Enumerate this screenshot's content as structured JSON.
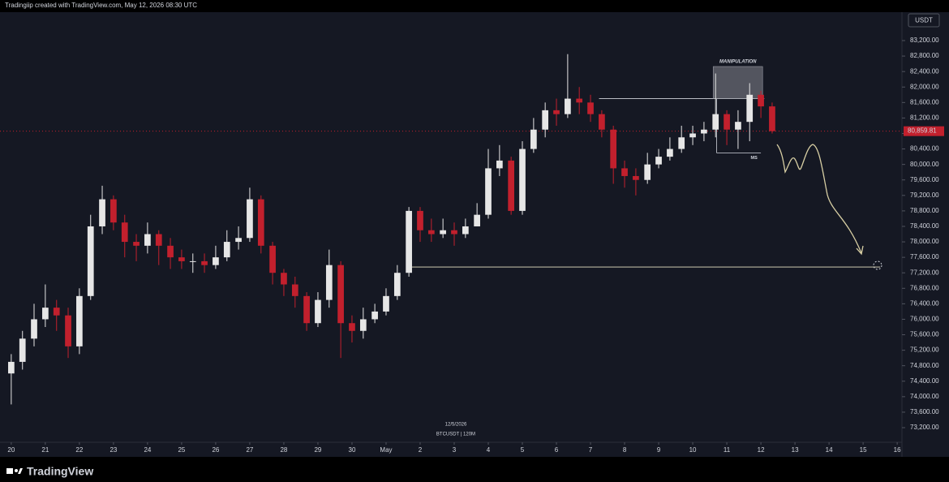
{
  "header": "Tradingiip created with TradingView.com, May 12, 2026 08:30 UTC",
  "currency": "USDT",
  "footer_logo": "TradingView",
  "chart_data": {
    "type": "candlestick",
    "watermark_date": "12/5/2026",
    "symbol": "BTCUSDT | 120M",
    "up_color": "#e6e6e6",
    "down_color": "#c2202d",
    "x": [
      0,
      0.33,
      0.67,
      1,
      1.33,
      1.67,
      2,
      2.33,
      2.67,
      3,
      3.33,
      3.67,
      4,
      4.33,
      4.67,
      5,
      5.33,
      5.67,
      6,
      6.33,
      6.67,
      7,
      7.33,
      7.67,
      8,
      8.33,
      8.67,
      9,
      9.33,
      9.67,
      10,
      10.33,
      10.67,
      11,
      11.33,
      11.67,
      12,
      12.33,
      12.67,
      13,
      13.33,
      13.67,
      14,
      14.33,
      14.67,
      15,
      15.33,
      15.67,
      16,
      16.33,
      16.67,
      17,
      17.33,
      17.67,
      18,
      18.33,
      18.67,
      19,
      19.33,
      19.67,
      20,
      20.33,
      20.67,
      21,
      21.33,
      21.67,
      22,
      22.33
    ],
    "open": [
      74600,
      74900,
      75500,
      76000,
      76300,
      76100,
      75300,
      76600,
      78400,
      79100,
      78500,
      78000,
      77900,
      78200,
      77900,
      77600,
      77500,
      77500,
      77400,
      77600,
      78000,
      78100,
      79100,
      77900,
      77200,
      76900,
      76600,
      75900,
      76500,
      77400,
      75900,
      75700,
      76000,
      76200,
      76600,
      77200,
      78800,
      78300,
      78200,
      78300,
      78200,
      78400,
      78700,
      79900,
      80100,
      78800,
      80400,
      80900,
      81400,
      81300,
      81700,
      81600,
      81300,
      80900,
      79900,
      79700,
      79600,
      80000,
      80200,
      80400,
      80700,
      80800,
      80900,
      81300,
      80900,
      81100,
      81800,
      81500
    ],
    "high": [
      75100,
      75700,
      76400,
      76900,
      76500,
      76300,
      76800,
      78700,
      79450,
      79200,
      78700,
      78200,
      78500,
      78300,
      78100,
      77800,
      77700,
      77700,
      77900,
      78300,
      78400,
      79400,
      79200,
      78000,
      77300,
      77100,
      76700,
      76700,
      77800,
      77500,
      76100,
      76300,
      76400,
      76800,
      77400,
      78900,
      78900,
      78600,
      78600,
      78500,
      78600,
      79000,
      80400,
      80500,
      80200,
      80600,
      81200,
      81600,
      81700,
      82850,
      82000,
      81800,
      81400,
      81000,
      80100,
      79900,
      80300,
      80400,
      80700,
      81000,
      81000,
      81100,
      82350,
      81400,
      81400,
      82100,
      81900,
      81600
    ],
    "low": [
      73800,
      74700,
      75300,
      75800,
      75700,
      75000,
      75100,
      76500,
      78200,
      78300,
      77600,
      77500,
      77700,
      77400,
      77300,
      77300,
      77200,
      77200,
      77300,
      77500,
      77800,
      78000,
      77700,
      76900,
      76600,
      76300,
      75700,
      75800,
      76300,
      75000,
      75400,
      75500,
      75900,
      76100,
      76500,
      77100,
      78000,
      78000,
      78100,
      77900,
      78100,
      78500,
      78600,
      79700,
      78700,
      78700,
      80300,
      80700,
      81000,
      81200,
      81300,
      81100,
      80700,
      79500,
      79400,
      79200,
      79500,
      79900,
      80100,
      80300,
      80500,
      80600,
      80700,
      80500,
      80400,
      80600,
      81200,
      80800
    ],
    "close": [
      74900,
      75500,
      76000,
      76300,
      76100,
      75300,
      76600,
      78400,
      79100,
      78500,
      78000,
      77900,
      78200,
      77900,
      77600,
      77500,
      77500,
      77400,
      77600,
      78000,
      78100,
      79100,
      77900,
      77200,
      76900,
      76600,
      75900,
      76500,
      77400,
      75900,
      75700,
      76000,
      76200,
      76600,
      77200,
      78800,
      78300,
      78200,
      78300,
      78200,
      78400,
      78700,
      79900,
      80100,
      78800,
      80400,
      80900,
      81400,
      81300,
      81700,
      81600,
      81300,
      80900,
      79900,
      79700,
      79600,
      80000,
      80200,
      80400,
      80700,
      80800,
      80900,
      81300,
      80900,
      81100,
      81800,
      81500,
      80860
    ],
    "last_price": {
      "value": 80859.81,
      "label": "80,859.81"
    },
    "levels": [
      81700,
      77350,
      80300
    ],
    "annotations": [
      "MANIPULATION",
      "MS"
    ],
    "xlim": [
      -0.33,
      26.14
    ],
    "ylim": [
      72823,
      83934
    ],
    "xticks": [
      {
        "value": 0,
        "label": "20"
      },
      {
        "value": 1,
        "label": "21"
      },
      {
        "value": 2,
        "label": "22"
      },
      {
        "value": 3,
        "label": "23"
      },
      {
        "value": 4,
        "label": "24"
      },
      {
        "value": 5,
        "label": "25"
      },
      {
        "value": 6,
        "label": "26"
      },
      {
        "value": 7,
        "label": "27"
      },
      {
        "value": 8,
        "label": "28"
      },
      {
        "value": 9,
        "label": "29"
      },
      {
        "value": 10,
        "label": "30"
      },
      {
        "value": 11,
        "label": "May"
      },
      {
        "value": 12,
        "label": "2"
      },
      {
        "value": 13,
        "label": "3"
      },
      {
        "value": 14,
        "label": "4"
      },
      {
        "value": 15,
        "label": "5"
      },
      {
        "value": 16,
        "label": "6"
      },
      {
        "value": 17,
        "label": "7"
      },
      {
        "value": 18,
        "label": "8"
      },
      {
        "value": 19,
        "label": "9"
      },
      {
        "value": 20,
        "label": "10"
      },
      {
        "value": 21,
        "label": "11"
      },
      {
        "value": 22,
        "label": "12"
      },
      {
        "value": 23,
        "label": "13"
      },
      {
        "value": 24,
        "label": "14"
      },
      {
        "value": 25,
        "label": "15"
      },
      {
        "value": 26,
        "label": "16"
      }
    ],
    "yticks": [
      {
        "value": 83200,
        "label": "83,200.00"
      },
      {
        "value": 82800,
        "label": "82,800.00"
      },
      {
        "value": 82400,
        "label": "82,400.00"
      },
      {
        "value": 82000,
        "label": "82,000.00"
      },
      {
        "value": 81600,
        "label": "81,600.00"
      },
      {
        "value": 81200,
        "label": "81,200.00"
      },
      {
        "value": 80800,
        "label": "80,800.00"
      },
      {
        "value": 80400,
        "label": "80,400.00"
      },
      {
        "value": 80000,
        "label": "80,000.00"
      },
      {
        "value": 79600,
        "label": "79,600.00"
      },
      {
        "value": 79200,
        "label": "79,200.00"
      },
      {
        "value": 78800,
        "label": "78,800.00"
      },
      {
        "value": 78400,
        "label": "78,400.00"
      },
      {
        "value": 78000,
        "label": "78,000.00"
      },
      {
        "value": 77600,
        "label": "77,600.00"
      },
      {
        "value": 77200,
        "label": "77,200.00"
      },
      {
        "value": 76800,
        "label": "76,800.00"
      },
      {
        "value": 76400,
        "label": "76,400.00"
      },
      {
        "value": 76000,
        "label": "76,000.00"
      },
      {
        "value": 75600,
        "label": "75,600.00"
      },
      {
        "value": 75200,
        "label": "75,200.00"
      },
      {
        "value": 74800,
        "label": "74,800.00"
      },
      {
        "value": 74400,
        "label": "74,400.00"
      },
      {
        "value": 74000,
        "label": "74,000.00"
      },
      {
        "value": 73600,
        "label": "73,600.00"
      },
      {
        "value": 73200,
        "label": "73,200.00"
      }
    ]
  }
}
